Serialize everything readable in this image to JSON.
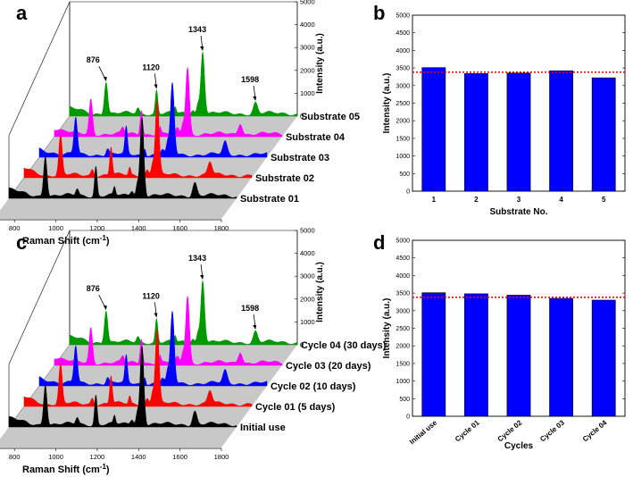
{
  "chart_data": [
    {
      "panel": "a",
      "type": "line",
      "subtype": "stacked 3D Raman spectra",
      "xlabel": "Raman Shift (cm-1)",
      "ylabel": "Intensity (a.u.)",
      "xticks": [
        "800",
        "1000",
        "1200",
        "1400",
        "1600",
        "1800"
      ],
      "yticks": [
        "0",
        "1000",
        "2000",
        "3000",
        "4000",
        "5000"
      ],
      "xlim": [
        700,
        1800
      ],
      "ylim": [
        0,
        5000
      ],
      "peaks": [
        {
          "shift": 876,
          "intensity": 1800,
          "label": "876"
        },
        {
          "shift": 1120,
          "intensity": 1300,
          "label": "1120"
        },
        {
          "shift": 1343,
          "intensity": 3450,
          "label": "1343"
        },
        {
          "shift": 1598,
          "intensity": 600,
          "label": "1598"
        }
      ],
      "series": [
        {
          "name": "Substrate 01",
          "color": "#000000"
        },
        {
          "name": "Substrate 02",
          "color": "#ff0000"
        },
        {
          "name": "Substrate 03",
          "color": "#0000ff"
        },
        {
          "name": "Substrate 04",
          "color": "#ff00ff"
        },
        {
          "name": "Substrate 05",
          "color": "#009900"
        }
      ]
    },
    {
      "panel": "b",
      "type": "bar",
      "xlabel": "Substrate No.",
      "ylabel": "Intensity (a.u.)",
      "categories": [
        "1",
        "2",
        "3",
        "4",
        "5"
      ],
      "values": [
        3510,
        3340,
        3355,
        3420,
        3220
      ],
      "ylim": [
        0,
        5000
      ],
      "yticks": [
        "0",
        "500",
        "1000",
        "1500",
        "2000",
        "2500",
        "3000",
        "3500",
        "4000",
        "4500",
        "5000"
      ],
      "reference_line": 3380,
      "bar_color": "#0000ff",
      "line_color": "#ff0000"
    },
    {
      "panel": "c",
      "type": "line",
      "subtype": "stacked 3D Raman spectra",
      "xlabel": "Raman Shift (cm-1)",
      "ylabel": "Intensity (a.u.)",
      "xticks": [
        "800",
        "1000",
        "1200",
        "1400",
        "1600",
        "1800"
      ],
      "yticks": [
        "0",
        "1000",
        "2000",
        "3000",
        "4000",
        "5000"
      ],
      "xlim": [
        700,
        1800
      ],
      "ylim": [
        0,
        5000
      ],
      "peaks": [
        {
          "shift": 876,
          "intensity": 1800,
          "label": "876"
        },
        {
          "shift": 1120,
          "intensity": 1300,
          "label": "1120"
        },
        {
          "shift": 1343,
          "intensity": 3450,
          "label": "1343"
        },
        {
          "shift": 1598,
          "intensity": 600,
          "label": "1598"
        }
      ],
      "series": [
        {
          "name": "Initial use",
          "color": "#000000"
        },
        {
          "name": "Cycle 01 (5 days)",
          "color": "#ff0000"
        },
        {
          "name": "Cycle 02 (10 days)",
          "color": "#0000ff"
        },
        {
          "name": "Cycle 03 (20 days)",
          "color": "#ff00ff"
        },
        {
          "name": "Cycle 04 (30 days)",
          "color": "#009900"
        }
      ]
    },
    {
      "panel": "d",
      "type": "bar",
      "xlabel": "Cycles",
      "ylabel": "Intensity (a.u.)",
      "categories": [
        "Initial use",
        "Cycle 01",
        "Cycle 02",
        "Cycle 03",
        "Cycle 04"
      ],
      "values": [
        3510,
        3480,
        3440,
        3350,
        3300
      ],
      "ylim": [
        0,
        5000
      ],
      "yticks": [
        "0",
        "500",
        "1000",
        "1500",
        "2000",
        "2500",
        "3000",
        "3500",
        "4000",
        "4500",
        "5000"
      ],
      "reference_line": 3380,
      "bar_color": "#0000ff",
      "line_color": "#ff0000"
    }
  ]
}
